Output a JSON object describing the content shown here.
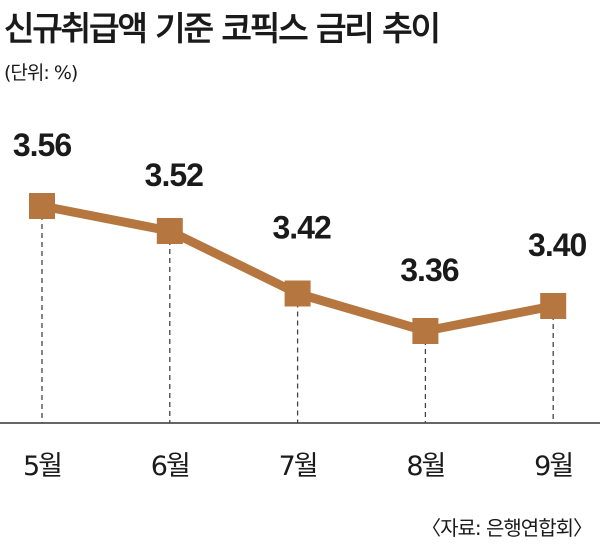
{
  "chart_data": {
    "type": "line",
    "title": "신규취급액 기준 코픽스 금리 추이",
    "unit_label": "(단위: %)",
    "categories": [
      "5월",
      "6월",
      "7월",
      "8월",
      "9월"
    ],
    "series": [
      {
        "name": "코픽스 금리",
        "values": [
          3.56,
          3.52,
          3.42,
          3.36,
          3.4
        ],
        "labels": [
          "3.56",
          "3.52",
          "3.42",
          "3.36",
          "3.40"
        ]
      }
    ],
    "ylim": [
      3.0,
      3.7
    ],
    "grid": false,
    "source": "〈자료: 은행연합회〉",
    "line_color": "#b5773f"
  }
}
